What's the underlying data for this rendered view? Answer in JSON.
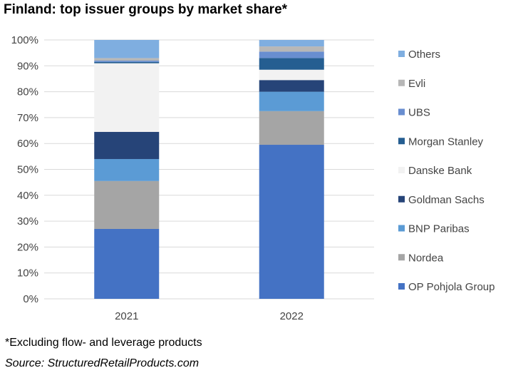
{
  "title": "Finland: top issuer groups by market share*",
  "footnote": "*Excluding flow- and leverage products",
  "source": "Source: StructuredRetailProducts.com",
  "chart_data": {
    "type": "bar",
    "stacked": true,
    "categories": [
      "2021",
      "2022"
    ],
    "ylim": [
      0,
      100
    ],
    "yticks": [
      "0%",
      "10%",
      "20%",
      "30%",
      "40%",
      "50%",
      "60%",
      "70%",
      "80%",
      "90%",
      "100%"
    ],
    "grid": true,
    "legend_position": "right",
    "series": [
      {
        "name": "OP Pohjola Group",
        "color": "#4472C4",
        "values": [
          27,
          59.5
        ]
      },
      {
        "name": "Nordea",
        "color": "#A5A5A5",
        "values": [
          18.5,
          13
        ]
      },
      {
        "name": "BNP Paribas",
        "color": "#5B9BD5",
        "values": [
          8.5,
          7.5
        ]
      },
      {
        "name": "Goldman Sachs",
        "color": "#264478",
        "values": [
          10.5,
          4.5
        ]
      },
      {
        "name": "Danske Bank",
        "color": "#F2F2F2",
        "values": [
          26.5,
          4
        ]
      },
      {
        "name": "Morgan Stanley",
        "color": "#255E91",
        "values": [
          0.5,
          4.5
        ]
      },
      {
        "name": "UBS",
        "color": "#698ED0",
        "values": [
          0.5,
          2.5
        ]
      },
      {
        "name": "Evli",
        "color": "#B7B7B7",
        "values": [
          1,
          2
        ]
      },
      {
        "name": "Others",
        "color": "#7FAEE0",
        "values": [
          7,
          2.5
        ]
      }
    ]
  }
}
